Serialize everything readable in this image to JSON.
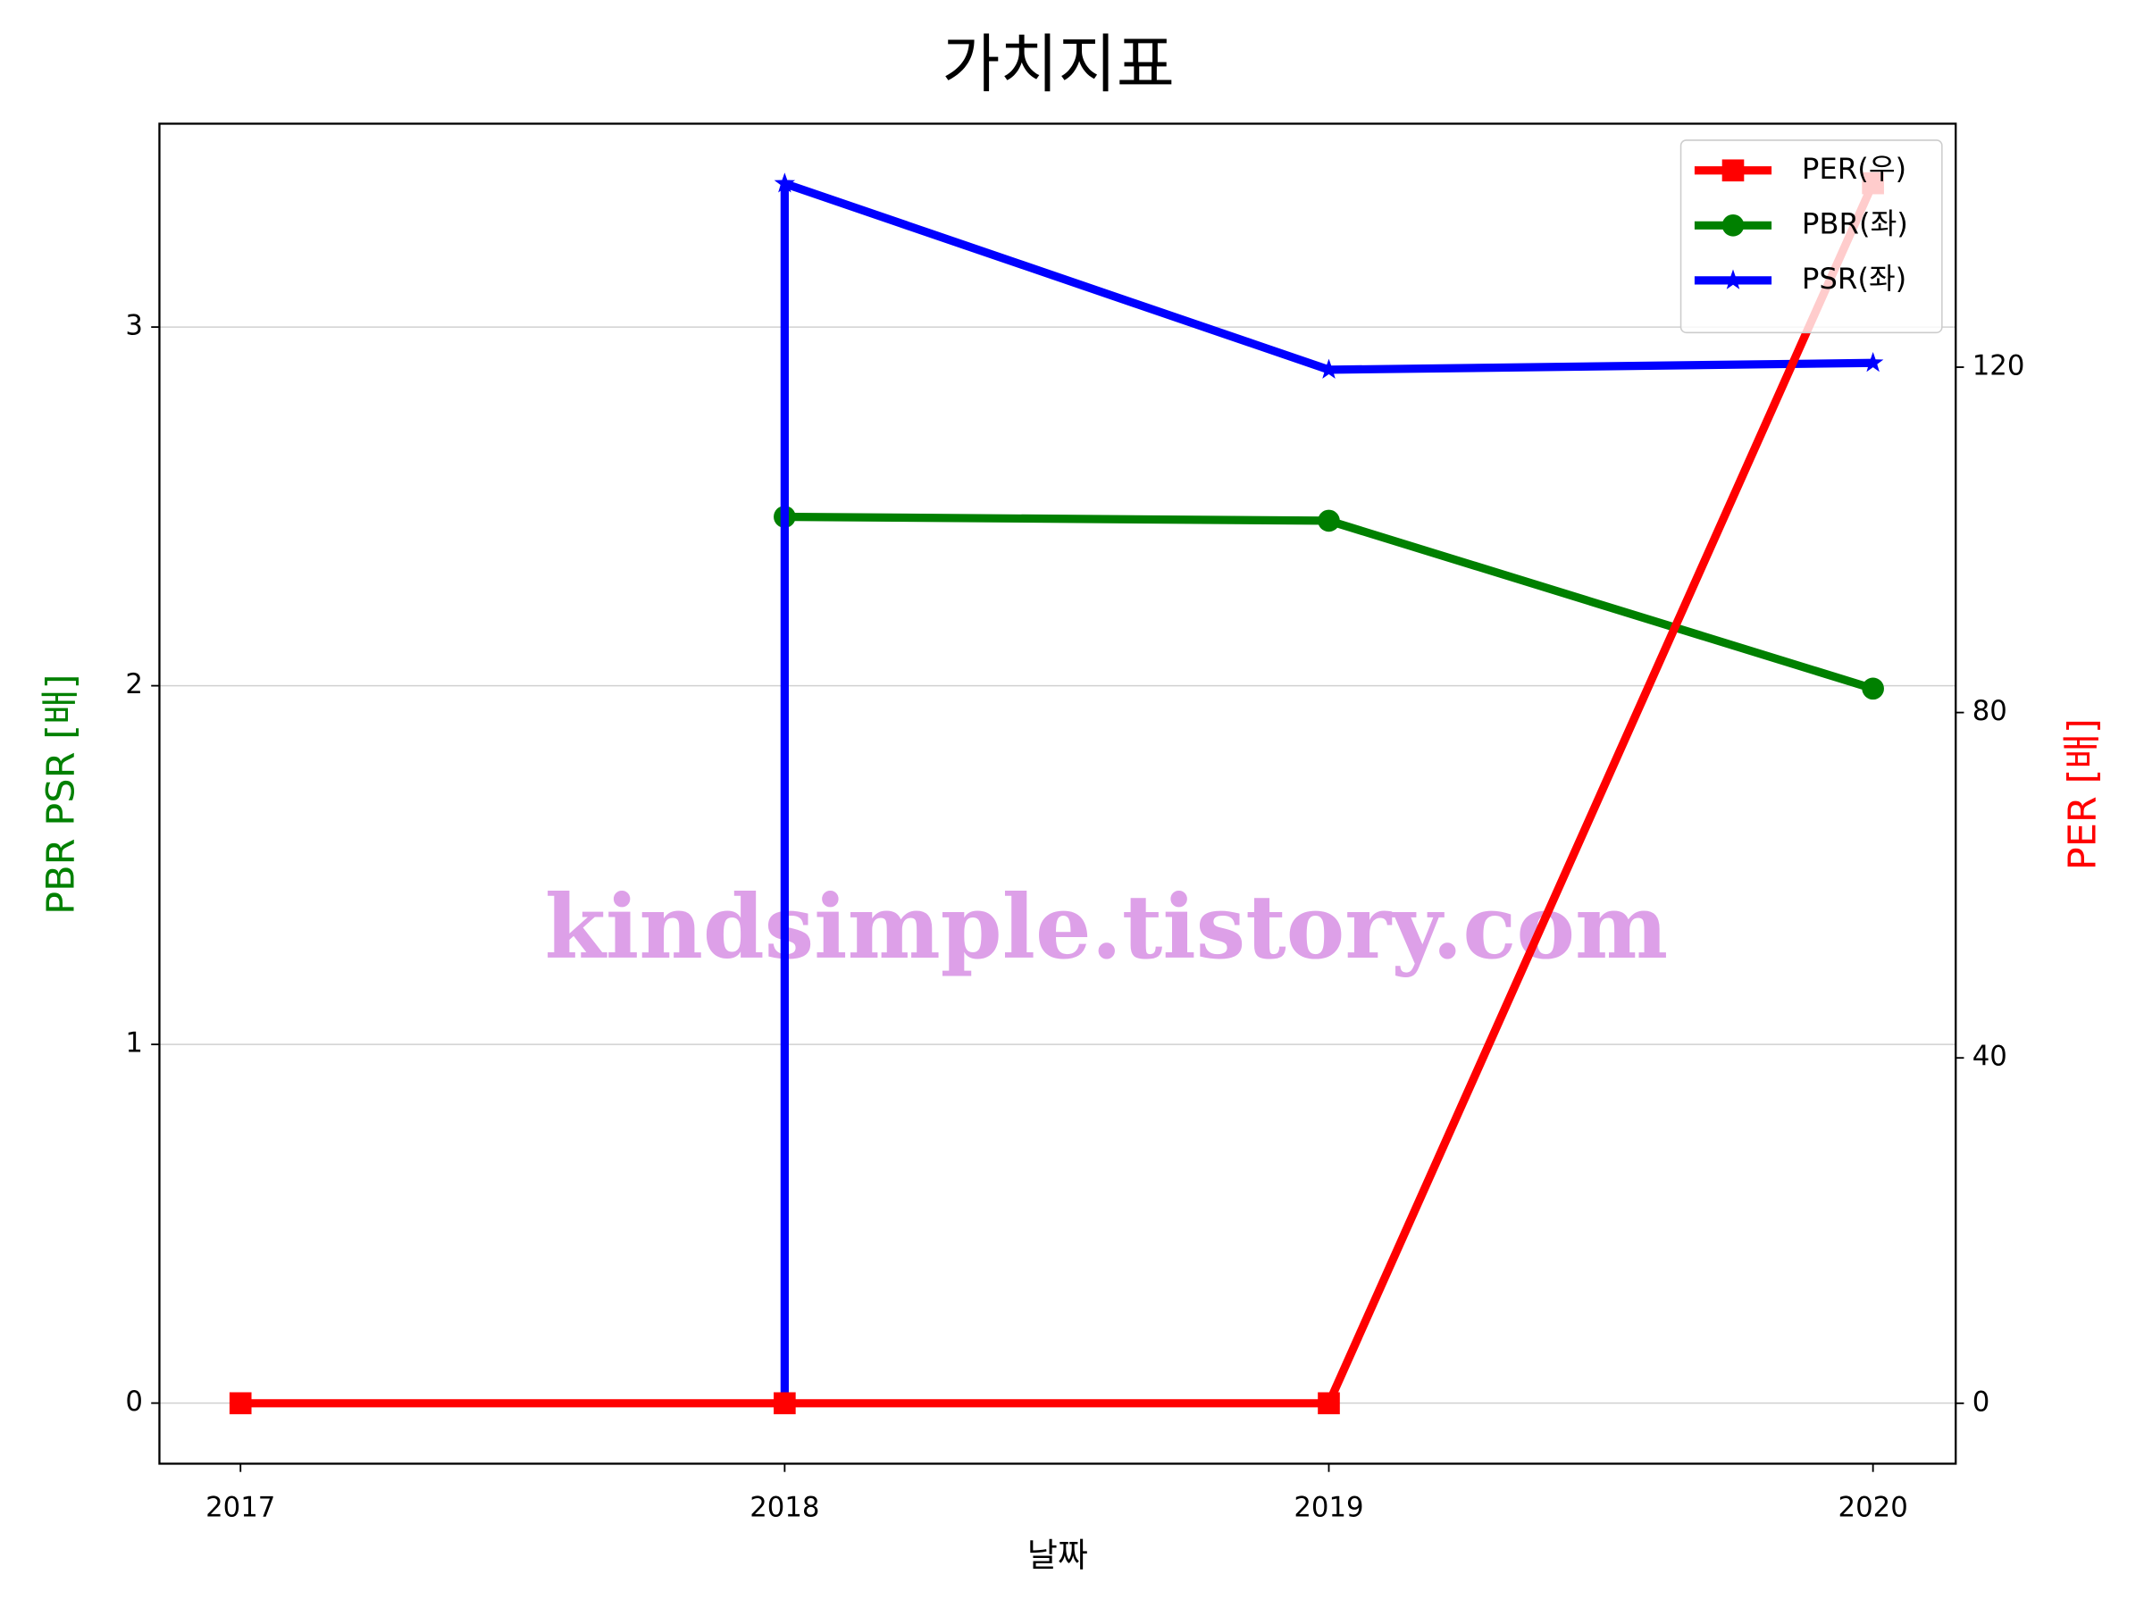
{
  "chart_data": {
    "type": "line",
    "title": "가치지표",
    "xlabel": "날짜",
    "ylabel": "PBR PSR [배]",
    "ylabel_color": "green",
    "y2label": "PER [배]",
    "y2label_color": "red",
    "watermark": "kindsimple.tistory.com",
    "xlim": [
      2016.851,
      2020.152
    ],
    "xticks": [
      2017,
      2018,
      2019,
      2020
    ],
    "ylim": [
      -0.169,
      3.567
    ],
    "yticks": [
      0,
      1,
      2,
      3
    ],
    "y2lim": [
      -7.0,
      148.2
    ],
    "y2ticks": [
      0,
      40,
      80,
      120
    ],
    "grid": true,
    "legend": "upper right",
    "series": [
      {
        "name": "PER(우)",
        "color": "red",
        "marker": "square",
        "axis": "y2",
        "x": [
          2017,
          2018,
          2019,
          2020
        ],
        "values": [
          0,
          0,
          0,
          141.3
        ]
      },
      {
        "name": "PBR(좌)",
        "color": "green",
        "marker": "circle",
        "x": [
          2018,
          2019,
          2020
        ],
        "values": [
          2.471,
          2.46,
          1.992
        ]
      },
      {
        "name": "PSR(좌)",
        "color": "blue",
        "marker": "star",
        "x": [
          2018,
          2018,
          2019,
          2020
        ],
        "values": [
          0,
          3.4,
          2.881,
          2.9
        ]
      }
    ]
  }
}
